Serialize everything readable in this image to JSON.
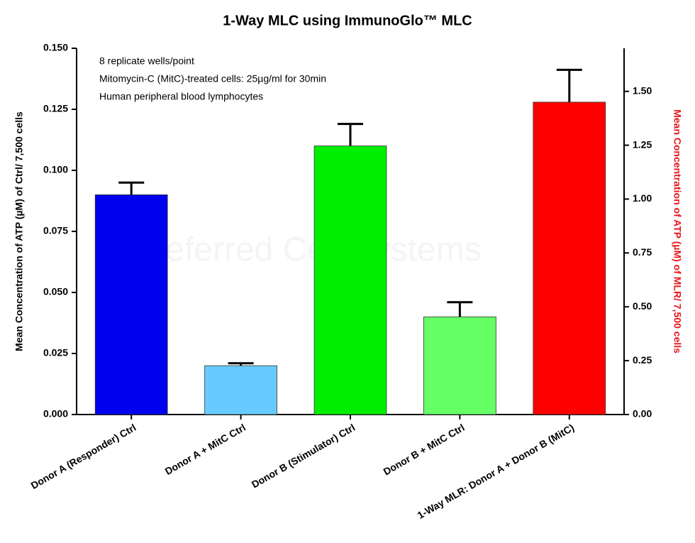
{
  "chart_data": {
    "type": "bar",
    "title": "1-Way MLC using ImmunoGlo™ MLC",
    "y_label": "Mean Concentration of ATP (µM) of Ctrl/ 7,500 cells",
    "y2_label": "Mean Concentration of ATP (µM) of MLR/ 7,500 cells",
    "annotations": [
      "8 replicate wells/point",
      "Mitomycin-C (MitC)-treated cells: 25µg/ml for 30min",
      "Human peripheral blood lymphocytes"
    ],
    "watermark": "Preferred Cell Systems",
    "categories": [
      "Donor A (Responder) Ctrl",
      "Donor A + MitC Ctrl",
      "Donor B (Stimulator) Ctrl",
      "Donor B + MitC Ctrl",
      "1-Way MLR: Donor A + Donor B (MitC)"
    ],
    "series": [
      {
        "values": [
          0.09,
          0.02,
          0.11,
          0.04,
          null
        ],
        "errors": [
          0.005,
          0.001,
          0.009,
          0.006,
          null
        ],
        "colors": [
          "#0000ee",
          "#66ccff",
          "#00ee00",
          "#66ff66",
          null
        ]
      },
      {
        "axis": "y2",
        "values": [
          null,
          null,
          null,
          null,
          1.45
        ],
        "errors": [
          null,
          null,
          null,
          null,
          0.15
        ],
        "colors": [
          null,
          null,
          null,
          null,
          "#ff0000"
        ]
      }
    ],
    "ylim": [
      0,
      0.15
    ],
    "yticks": [
      {
        "value": 0,
        "label": "0.000"
      },
      0.025,
      {
        "value": 0.05,
        "label": "0.050"
      },
      0.075,
      {
        "value": 0.1,
        "label": "0.100"
      },
      0.125,
      {
        "value": 0.15,
        "label": "0.150"
      }
    ],
    "y2lim": [
      0,
      1.7
    ],
    "y2ticks": [
      {
        "value": 0,
        "label": "0.00"
      },
      0.25,
      {
        "value": 0.5,
        "label": "0.50"
      },
      0.75,
      {
        "value": 1,
        "label": "1.00"
      },
      1.25,
      {
        "value": 1.5,
        "label": "1.50"
      }
    ],
    "y2_color": "#e8141b"
  }
}
